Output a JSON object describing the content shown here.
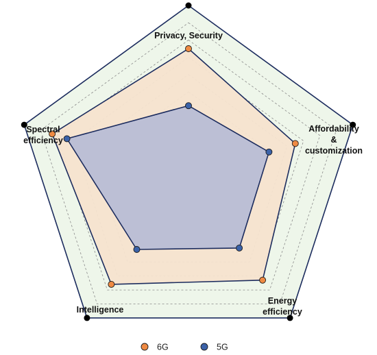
{
  "chart_data": {
    "type": "radar",
    "axes": [
      {
        "label_lines": [
          "Privacy, Security"
        ]
      },
      {
        "label_lines": [
          "Affordability",
          "&",
          "customization"
        ]
      },
      {
        "label_lines": [
          "Energy",
          "efficiency"
        ]
      },
      {
        "label_lines": [
          "Intelligence"
        ]
      },
      {
        "label_lines": [
          "Spectral",
          "efficiency"
        ]
      }
    ],
    "rmax": 10,
    "grid_levels": 10,
    "series": [
      {
        "name": "6G",
        "values": [
          7.5,
          6.5,
          7.3,
          7.6,
          8.3
        ],
        "fill": "#f6e3cf",
        "marker": "#ef8a43"
      },
      {
        "name": "5G",
        "values": [
          4.2,
          4.9,
          5.0,
          5.1,
          7.4
        ],
        "fill": "#b8bdd5",
        "marker": "#3b62a8"
      }
    ],
    "legend": {
      "position": "bottom",
      "items": [
        "6G",
        "5G"
      ]
    },
    "colors": {
      "outer_fill": "#eef6ea",
      "grid": "#8a8a8a",
      "outline": "#1c2c5e",
      "vertex_dot": "#000000"
    }
  }
}
